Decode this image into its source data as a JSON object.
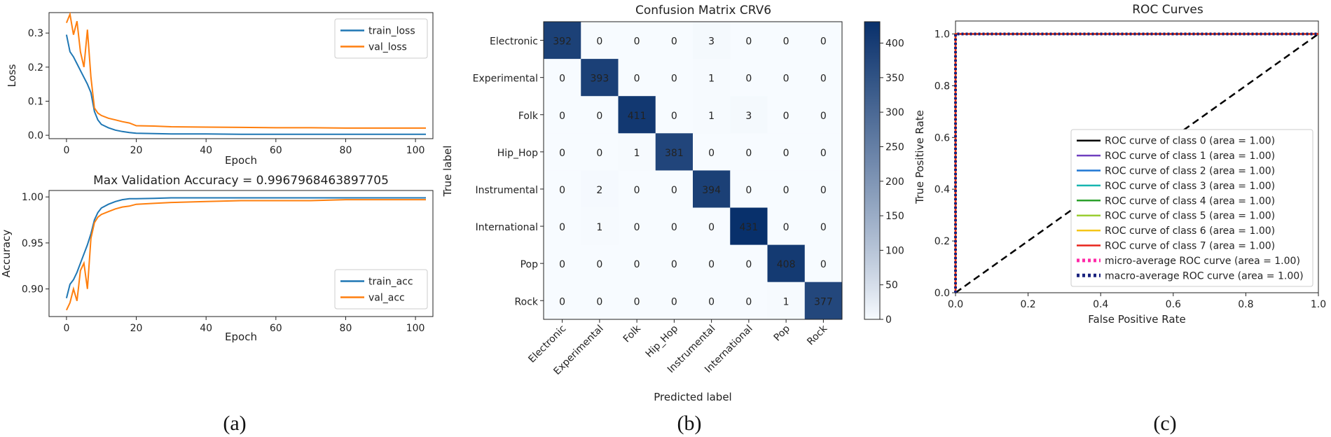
{
  "chart_data": [
    {
      "type": "line",
      "panel": "a-top",
      "title": "",
      "xlabel": "Epoch",
      "ylabel": "Loss",
      "xlim": [
        -5,
        105
      ],
      "ylim": [
        -0.01,
        0.36
      ],
      "xticks": [
        0,
        20,
        40,
        60,
        80,
        100
      ],
      "yticks": [
        0.0,
        0.1,
        0.2,
        0.3
      ],
      "ytick_labels": [
        "0.0",
        "0.1",
        "0.2",
        "0.3"
      ],
      "legend": "top-right",
      "series": [
        {
          "name": "train_loss",
          "color": "#1f77b4",
          "x": [
            0,
            1,
            2,
            3,
            4,
            5,
            6,
            7,
            8,
            9,
            10,
            12,
            14,
            16,
            18,
            20,
            25,
            30,
            40,
            50,
            60,
            70,
            80,
            90,
            100,
            103
          ],
          "y": [
            0.295,
            0.245,
            0.23,
            0.21,
            0.19,
            0.17,
            0.15,
            0.125,
            0.07,
            0.045,
            0.032,
            0.022,
            0.015,
            0.011,
            0.008,
            0.006,
            0.005,
            0.004,
            0.004,
            0.003,
            0.003,
            0.003,
            0.003,
            0.003,
            0.003,
            0.003
          ]
        },
        {
          "name": "val_loss",
          "color": "#ff7f0e",
          "x": [
            0,
            1,
            2,
            3,
            4,
            5,
            6,
            7,
            8,
            9,
            10,
            12,
            14,
            16,
            18,
            20,
            25,
            30,
            40,
            50,
            60,
            70,
            80,
            90,
            100,
            103
          ],
          "y": [
            0.33,
            0.355,
            0.295,
            0.335,
            0.245,
            0.2,
            0.31,
            0.17,
            0.08,
            0.065,
            0.058,
            0.05,
            0.045,
            0.04,
            0.036,
            0.028,
            0.027,
            0.025,
            0.024,
            0.023,
            0.022,
            0.022,
            0.021,
            0.021,
            0.021,
            0.021
          ]
        }
      ]
    },
    {
      "type": "line",
      "panel": "a-bottom",
      "title": "Max Validation Accuracy = 0.9967968463897705",
      "xlabel": "Epoch",
      "ylabel": "Accuracy",
      "xlim": [
        -5,
        105
      ],
      "ylim": [
        0.87,
        1.007
      ],
      "xticks": [
        0,
        20,
        40,
        60,
        80,
        100
      ],
      "yticks": [
        0.9,
        0.95,
        1.0
      ],
      "ytick_labels": [
        "0.90",
        "0.95",
        "1.00"
      ],
      "legend": "bottom-right",
      "series": [
        {
          "name": "train_acc",
          "color": "#1f77b4",
          "x": [
            0,
            1,
            2,
            3,
            4,
            5,
            6,
            7,
            8,
            9,
            10,
            12,
            14,
            16,
            18,
            20,
            25,
            30,
            40,
            50,
            60,
            70,
            80,
            90,
            100,
            103
          ],
          "y": [
            0.89,
            0.905,
            0.91,
            0.918,
            0.928,
            0.938,
            0.948,
            0.96,
            0.975,
            0.983,
            0.988,
            0.992,
            0.995,
            0.997,
            0.998,
            0.998,
            0.9985,
            0.999,
            0.999,
            0.999,
            0.999,
            0.999,
            0.999,
            0.999,
            0.999,
            0.999
          ]
        },
        {
          "name": "val_acc",
          "color": "#ff7f0e",
          "x": [
            0,
            1,
            2,
            3,
            4,
            5,
            6,
            7,
            8,
            9,
            10,
            12,
            14,
            16,
            18,
            20,
            25,
            30,
            40,
            50,
            60,
            70,
            80,
            90,
            100,
            103
          ],
          "y": [
            0.877,
            0.885,
            0.9,
            0.887,
            0.92,
            0.928,
            0.9,
            0.955,
            0.972,
            0.978,
            0.981,
            0.984,
            0.987,
            0.989,
            0.99,
            0.992,
            0.993,
            0.994,
            0.995,
            0.996,
            0.996,
            0.996,
            0.997,
            0.997,
            0.997,
            0.997
          ]
        }
      ]
    },
    {
      "type": "heatmap",
      "panel": "b",
      "title": "Confusion Matrix CRV6",
      "xlabel": "Predicted label",
      "ylabel": "True label",
      "labels": [
        "Electronic",
        "Experimental",
        "Folk",
        "Hip_Hop",
        "Instrumental",
        "International",
        "Pop",
        "Rock"
      ],
      "matrix": [
        [
          392,
          0,
          0,
          0,
          3,
          0,
          0,
          0
        ],
        [
          0,
          393,
          0,
          0,
          1,
          0,
          0,
          0
        ],
        [
          0,
          0,
          411,
          0,
          1,
          3,
          0,
          0
        ],
        [
          0,
          0,
          1,
          381,
          0,
          0,
          0,
          0
        ],
        [
          0,
          2,
          0,
          0,
          394,
          0,
          0,
          0
        ],
        [
          0,
          1,
          0,
          0,
          0,
          431,
          0,
          0
        ],
        [
          0,
          0,
          0,
          0,
          0,
          0,
          408,
          0
        ],
        [
          0,
          0,
          0,
          0,
          0,
          0,
          1,
          377
        ]
      ],
      "colorbar_ticks": [
        0,
        50,
        100,
        150,
        200,
        250,
        300,
        350,
        400
      ],
      "colormap": "Blues",
      "vmax": 431
    },
    {
      "type": "line",
      "panel": "c",
      "title": "ROC Curves",
      "xlabel": "False Positive Rate",
      "ylabel": "True Positive Rate",
      "xlim": [
        0.0,
        1.0
      ],
      "ylim": [
        0.0,
        1.05
      ],
      "xticks": [
        0.0,
        0.2,
        0.4,
        0.6,
        0.8,
        1.0
      ],
      "yticks": [
        0.0,
        0.2,
        0.4,
        0.6,
        0.8,
        1.0
      ],
      "tick_labels": [
        "0.0",
        "0.2",
        "0.4",
        "0.6",
        "0.8",
        "1.0"
      ],
      "legend": "lower-right",
      "series": [
        {
          "name": "ROC curve of class 0 (area = 1.00)",
          "color": "#000000",
          "style": "solid",
          "x": [
            0,
            0,
            1
          ],
          "y": [
            0,
            1,
            1
          ]
        },
        {
          "name": "ROC curve of class 1 (area = 1.00)",
          "color": "#6f3fbf",
          "style": "solid",
          "x": [
            0,
            0,
            1
          ],
          "y": [
            0,
            1,
            1
          ]
        },
        {
          "name": "ROC curve of class 2 (area = 1.00)",
          "color": "#1f77d4",
          "style": "solid",
          "x": [
            0,
            0,
            1
          ],
          "y": [
            0,
            1,
            1
          ]
        },
        {
          "name": "ROC curve of class 3 (area = 1.00)",
          "color": "#17b5b0",
          "style": "solid",
          "x": [
            0,
            0,
            1
          ],
          "y": [
            0,
            1,
            1
          ]
        },
        {
          "name": "ROC curve of class 4 (area = 1.00)",
          "color": "#2ca02c",
          "style": "solid",
          "x": [
            0,
            0,
            1
          ],
          "y": [
            0,
            1,
            1
          ]
        },
        {
          "name": "ROC curve of class 5 (area = 1.00)",
          "color": "#9acd32",
          "style": "solid",
          "x": [
            0,
            0,
            1
          ],
          "y": [
            0,
            1,
            1
          ]
        },
        {
          "name": "ROC curve of class 6 (area = 1.00)",
          "color": "#f5c518",
          "style": "solid",
          "x": [
            0,
            0,
            1
          ],
          "y": [
            0,
            1,
            1
          ]
        },
        {
          "name": "ROC curve of class 7 (area = 1.00)",
          "color": "#e8251c",
          "style": "solid",
          "x": [
            0,
            0,
            1
          ],
          "y": [
            0,
            1,
            1
          ]
        },
        {
          "name": "micro-average ROC curve (area = 1.00)",
          "color": "#ff2aa8",
          "style": "dotted",
          "x": [
            0,
            0,
            1
          ],
          "y": [
            0,
            1,
            1
          ]
        },
        {
          "name": "macro-average ROC curve (area = 1.00)",
          "color": "#1a237e",
          "style": "dotted",
          "x": [
            0,
            0,
            1
          ],
          "y": [
            0,
            1,
            1
          ]
        }
      ],
      "diagonal": {
        "x": [
          0,
          1
        ],
        "y": [
          0,
          1
        ],
        "color": "#000000",
        "style": "dashed"
      }
    }
  ],
  "captions": [
    "(a)",
    "(b)",
    "(c)"
  ]
}
